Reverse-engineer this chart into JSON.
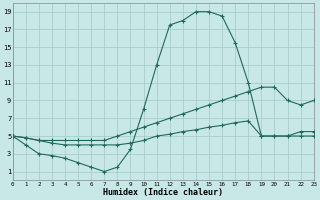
{
  "xlabel": "Humidex (Indice chaleur)",
  "bg_color": "#c8e8e8",
  "grid_color": "#a8cccc",
  "line_color": "#206858",
  "xlim": [
    0,
    23
  ],
  "ylim": [
    0,
    20
  ],
  "xticks": [
    0,
    1,
    2,
    3,
    4,
    5,
    6,
    7,
    8,
    9,
    10,
    11,
    12,
    13,
    14,
    15,
    16,
    17,
    18,
    19,
    20,
    21,
    22,
    23
  ],
  "yticks": [
    1,
    3,
    5,
    7,
    9,
    11,
    13,
    15,
    17,
    19
  ],
  "line1_y": [
    5,
    4,
    3,
    2.8,
    2.5,
    2,
    1.5,
    1,
    1.5,
    3.5,
    8,
    13,
    17.5,
    18,
    19,
    19,
    18.5,
    15.5,
    11,
    5,
    5,
    5,
    5,
    5
  ],
  "line2_y": [
    5,
    4.8,
    4.5,
    4.5,
    4.5,
    4.5,
    4.5,
    4.5,
    5,
    5.5,
    6,
    6.5,
    7,
    7.5,
    8,
    8.5,
    9,
    9.5,
    10,
    10.5,
    10.5,
    9,
    8.5,
    9
  ],
  "line3_y": [
    5,
    4.8,
    4.5,
    4.2,
    4,
    4,
    4,
    4,
    4,
    4.2,
    4.5,
    5,
    5.2,
    5.5,
    5.7,
    6,
    6.2,
    6.5,
    6.7,
    5,
    5,
    5,
    5.5,
    5.5
  ]
}
